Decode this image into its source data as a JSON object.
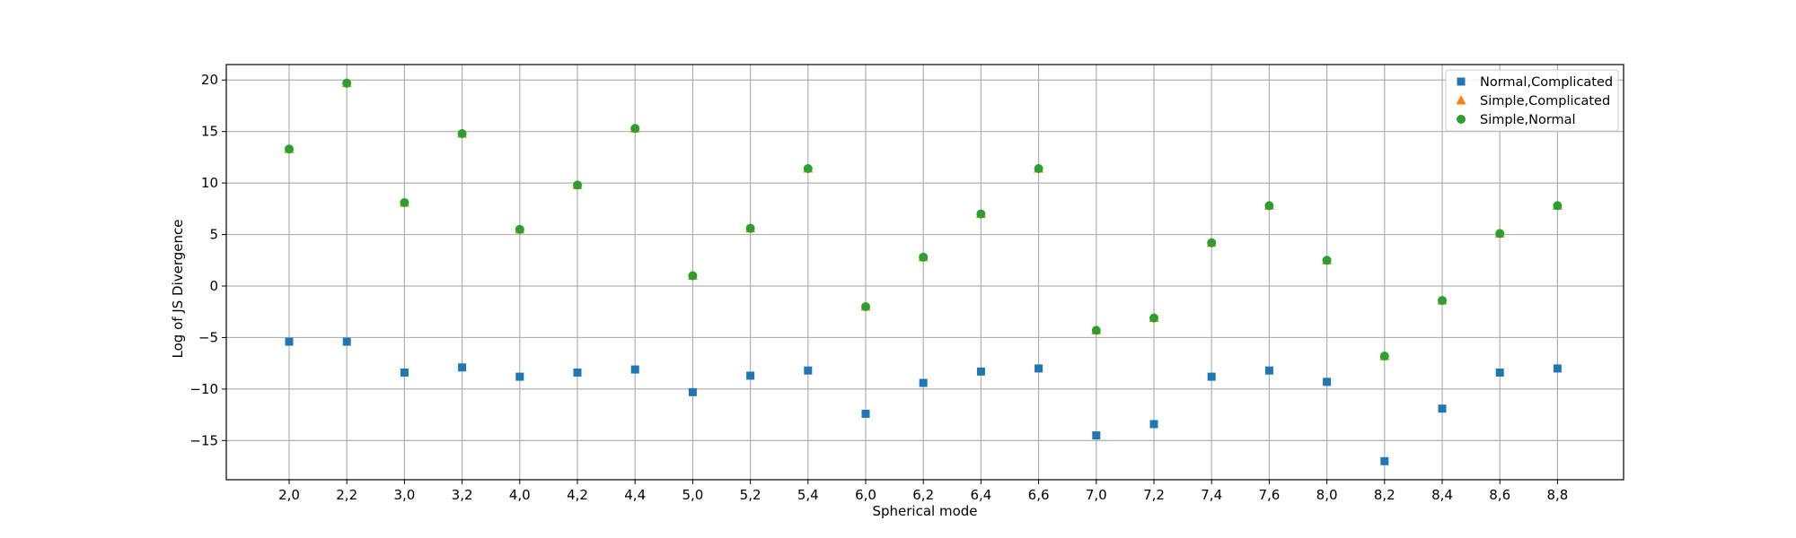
{
  "chart_data": {
    "type": "scatter",
    "title": "",
    "xlabel": "Spherical mode",
    "ylabel": "Log of JS Divergence",
    "categories": [
      "2,0",
      "2,2",
      "3,0",
      "3,2",
      "4,0",
      "4,2",
      "4,4",
      "5,0",
      "5,2",
      "5,4",
      "6,0",
      "6,2",
      "6,4",
      "6,6",
      "7,0",
      "7,2",
      "7,4",
      "7,6",
      "8,0",
      "8,2",
      "8,4",
      "8,6",
      "8,8"
    ],
    "yticks": [
      -15,
      -10,
      -5,
      0,
      5,
      10,
      15,
      20
    ],
    "ylim": [
      -18.8,
      21.5
    ],
    "grid": true,
    "legend_position": "top-right",
    "series": [
      {
        "name": "Normal,Complicated",
        "marker": "square",
        "color": "#1f77b4",
        "values": [
          -5.4,
          -5.4,
          -8.4,
          -7.9,
          -8.8,
          -8.4,
          -8.1,
          -10.3,
          -8.7,
          -8.2,
          -12.4,
          -9.4,
          -8.3,
          -8.0,
          -14.5,
          -13.4,
          -8.8,
          -8.2,
          -9.3,
          -17.0,
          -11.9,
          -8.4,
          -8.0
        ]
      },
      {
        "name": "Simple,Complicated",
        "marker": "triangle",
        "color": "#ff7f0e",
        "values": [
          13.3,
          19.7,
          8.1,
          14.8,
          5.5,
          9.8,
          15.3,
          1.0,
          5.6,
          11.4,
          -2.0,
          2.8,
          7.0,
          11.4,
          -4.3,
          -3.1,
          4.2,
          7.8,
          2.5,
          -6.8,
          -1.4,
          5.1,
          7.8
        ]
      },
      {
        "name": "Simple,Normal",
        "marker": "circle",
        "color": "#2ca02c",
        "values": [
          13.3,
          19.7,
          8.1,
          14.8,
          5.5,
          9.8,
          15.3,
          1.0,
          5.6,
          11.4,
          -2.0,
          2.8,
          7.0,
          11.4,
          -4.3,
          -3.1,
          4.2,
          7.8,
          2.5,
          -6.8,
          -1.4,
          5.1,
          7.8
        ]
      }
    ]
  }
}
